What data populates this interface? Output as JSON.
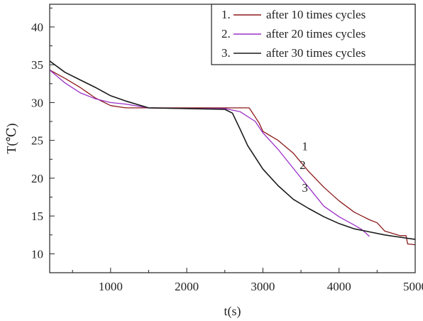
{
  "chart_data": {
    "type": "line",
    "xlabel": "t(s)",
    "ylabel": "T(℃)",
    "xlim": [
      200,
      5000
    ],
    "ylim": [
      7.5,
      43
    ],
    "x_ticks": [
      1000,
      2000,
      3000,
      4000,
      5000
    ],
    "y_ticks": [
      10,
      15,
      20,
      25,
      30,
      35,
      40
    ],
    "grid": false,
    "legend_position": "top-right",
    "series": [
      {
        "name": "after 10 times cycles",
        "legend_prefix": "1.",
        "curve_label": "1",
        "color": "#8b1a1a",
        "points": [
          [
            200,
            34.3
          ],
          [
            400,
            33.2
          ],
          [
            600,
            32.0
          ],
          [
            800,
            30.6
          ],
          [
            1000,
            29.6
          ],
          [
            1200,
            29.3
          ],
          [
            1500,
            29.3
          ],
          [
            2000,
            29.3
          ],
          [
            2500,
            29.3
          ],
          [
            2820,
            29.3
          ],
          [
            2950,
            27.3
          ],
          [
            3000,
            26.2
          ],
          [
            3200,
            25.0
          ],
          [
            3400,
            23.3
          ],
          [
            3600,
            20.9
          ],
          [
            3800,
            18.8
          ],
          [
            4000,
            17.0
          ],
          [
            4200,
            15.5
          ],
          [
            4400,
            14.5
          ],
          [
            4500,
            14.1
          ],
          [
            4600,
            13.0
          ],
          [
            4800,
            12.4
          ],
          [
            4880,
            12.4
          ],
          [
            4900,
            11.3
          ],
          [
            5000,
            11.2
          ]
        ]
      },
      {
        "name": "after 20 times cycles",
        "legend_prefix": "2.",
        "curve_label": "2",
        "color": "#9b30c8",
        "points": [
          [
            200,
            34.3
          ],
          [
            400,
            32.6
          ],
          [
            600,
            31.3
          ],
          [
            800,
            30.5
          ],
          [
            1000,
            30.0
          ],
          [
            1200,
            29.8
          ],
          [
            1500,
            29.3
          ],
          [
            2000,
            29.2
          ],
          [
            2500,
            29.2
          ],
          [
            2700,
            28.8
          ],
          [
            2900,
            27.5
          ],
          [
            3000,
            26.0
          ],
          [
            3200,
            23.8
          ],
          [
            3400,
            21.3
          ],
          [
            3600,
            18.8
          ],
          [
            3800,
            16.3
          ],
          [
            4000,
            14.9
          ],
          [
            4200,
            13.8
          ],
          [
            4300,
            13.2
          ],
          [
            4400,
            12.3
          ]
        ]
      },
      {
        "name": "after 30 times cycles",
        "legend_prefix": "3.",
        "curve_label": "3",
        "color": "#1a1a1a",
        "points": [
          [
            200,
            35.5
          ],
          [
            400,
            34.0
          ],
          [
            600,
            33.0
          ],
          [
            800,
            32.0
          ],
          [
            1000,
            30.9
          ],
          [
            1200,
            30.2
          ],
          [
            1500,
            29.3
          ],
          [
            2000,
            29.2
          ],
          [
            2500,
            29.1
          ],
          [
            2600,
            28.6
          ],
          [
            2700,
            26.5
          ],
          [
            2800,
            24.3
          ],
          [
            3000,
            21.2
          ],
          [
            3200,
            19.0
          ],
          [
            3400,
            17.2
          ],
          [
            3600,
            16.0
          ],
          [
            3800,
            14.9
          ],
          [
            4000,
            14.0
          ],
          [
            4200,
            13.3
          ],
          [
            4400,
            12.9
          ],
          [
            4600,
            12.5
          ],
          [
            4800,
            12.2
          ],
          [
            5000,
            11.9
          ]
        ]
      }
    ],
    "curve_labels": [
      {
        "text": "1",
        "x": 3400,
        "y": 23.7
      },
      {
        "text": "2",
        "x": 3370,
        "y": 21.2
      },
      {
        "text": "3",
        "x": 3400,
        "y": 18.2
      }
    ]
  }
}
